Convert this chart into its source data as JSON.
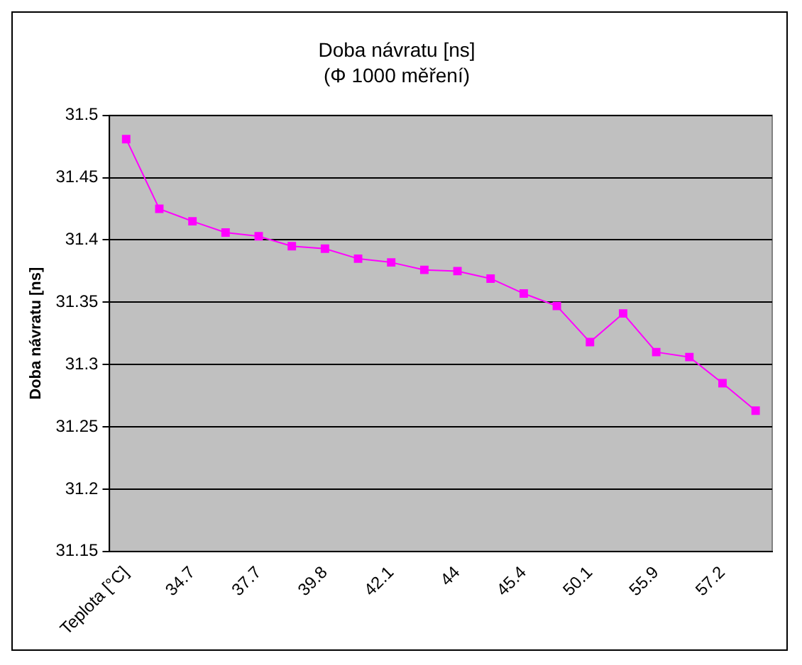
{
  "chart_data": {
    "type": "line",
    "title": [
      "Doba návratu [ns]",
      "(Φ 1000 měření)"
    ],
    "ylabel": "Doba návratu [ns]",
    "categories": [
      "Teplota [°C]",
      null,
      "34.7",
      null,
      "37.7",
      null,
      "39.8",
      null,
      "42.1",
      null,
      "44",
      null,
      "45.4",
      null,
      "50.1",
      null,
      "55.9",
      null,
      "57.2",
      null
    ],
    "series": [
      {
        "color": "#ff00ff",
        "values": [
          31.481,
          31.425,
          31.415,
          31.406,
          31.403,
          31.395,
          31.393,
          31.385,
          31.382,
          31.376,
          31.375,
          31.369,
          31.357,
          31.347,
          31.318,
          31.341,
          31.31,
          31.306,
          31.285,
          31.263
        ]
      }
    ],
    "ylim": [
      31.15,
      31.5
    ],
    "yticks": [
      31.15,
      31.2,
      31.25,
      31.3,
      31.35,
      31.4,
      31.45,
      31.5
    ],
    "grid": "y",
    "legend": false,
    "marker": "square",
    "line_style": "solid"
  }
}
